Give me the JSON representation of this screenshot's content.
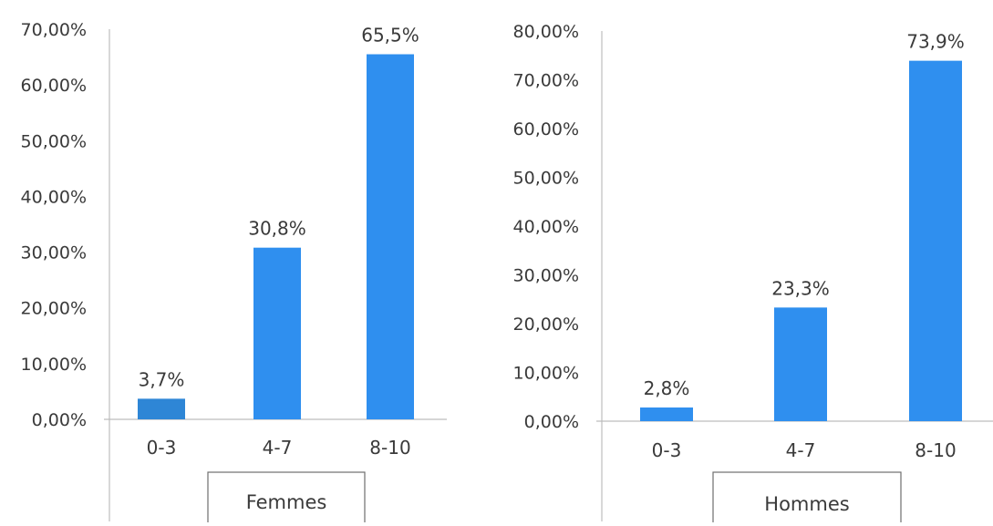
{
  "chart_data": [
    {
      "type": "bar",
      "categories": [
        "0-3",
        "4-7",
        "8-10"
      ],
      "values": [
        3.7,
        30.8,
        65.5
      ],
      "data_labels": [
        "3,7%",
        "30,8%",
        "65,5%"
      ],
      "ylim": [
        0,
        70
      ],
      "y_ticks": [
        "0,00%",
        "10,00%",
        "20,00%",
        "30,00%",
        "40,00%",
        "50,00%",
        "60,00%",
        "70,00%"
      ],
      "group_label": "Femmes",
      "grid": false,
      "colors": [
        "#2e86d6",
        "#2f8fef",
        "#2f8fef"
      ]
    },
    {
      "type": "bar",
      "categories": [
        "0-3",
        "4-7",
        "8-10"
      ],
      "values": [
        2.8,
        23.3,
        73.9
      ],
      "data_labels": [
        "2,8%",
        "23,3%",
        "73,9%"
      ],
      "ylim": [
        0,
        80
      ],
      "y_ticks": [
        "0,00%",
        "10,00%",
        "20,00%",
        "30,00%",
        "40,00%",
        "50,00%",
        "60,00%",
        "70,00%",
        "80,00%"
      ],
      "group_label": "Hommes",
      "grid": false,
      "colors": [
        "#2f8fef",
        "#2f8fef",
        "#2f8fef"
      ]
    }
  ]
}
